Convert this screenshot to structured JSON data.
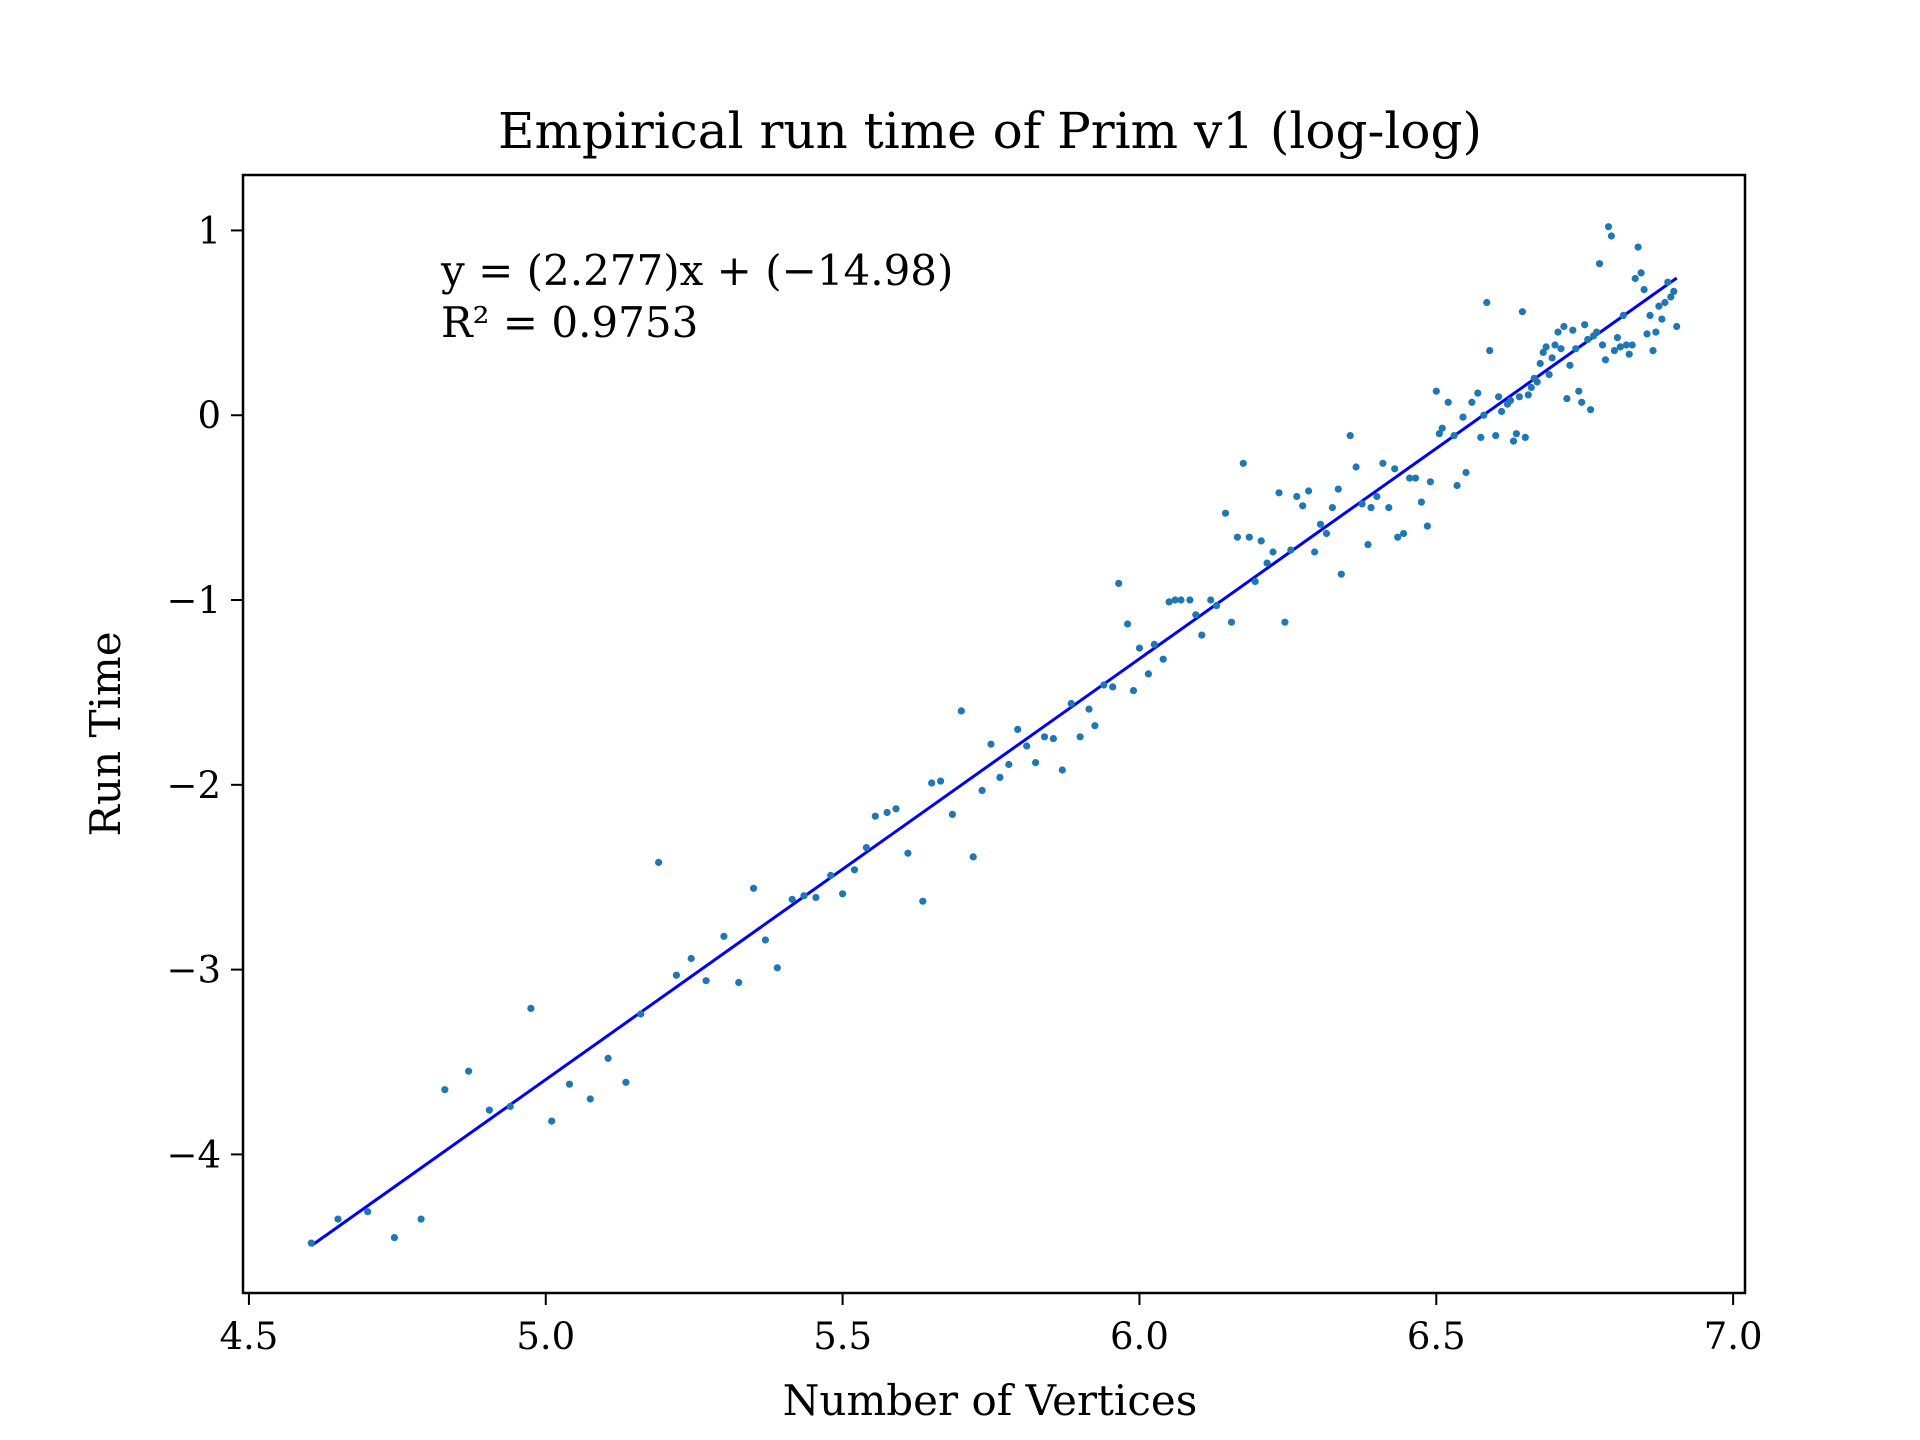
{
  "colors": {
    "points": "#1f77b4",
    "fit_line": "#0000ff",
    "axes": "#000000"
  },
  "chart_data": {
    "type": "scatter",
    "title": "Empirical run time of Prim v1 (log-log)",
    "xlabel": "Number of Vertices",
    "ylabel": "Run Time",
    "xlim": [
      4.49,
      7.02
    ],
    "ylim": [
      -4.75,
      1.3
    ],
    "x_ticks": [
      4.5,
      5.0,
      5.5,
      6.0,
      6.5,
      7.0
    ],
    "x_tick_labels": [
      "4.5",
      "5.0",
      "5.5",
      "6.0",
      "6.5",
      "7.0"
    ],
    "y_ticks": [
      1,
      0,
      -1,
      -2,
      -3,
      -4
    ],
    "y_tick_labels": [
      "1",
      "0",
      "−1",
      "−2",
      "−3",
      "−4"
    ],
    "grid": false,
    "legend": "none",
    "fit": {
      "slope": 2.277,
      "intercept": -14.98,
      "x_range": [
        4.605,
        6.905
      ],
      "equation_text": "y = (2.277)x + (−14.98)",
      "r2_text": "R² = 0.9753"
    },
    "points": [
      [
        4.605,
        -4.48
      ],
      [
        4.65,
        -4.35
      ],
      [
        4.7,
        -4.31
      ],
      [
        4.745,
        -4.45
      ],
      [
        4.79,
        -4.35
      ],
      [
        4.83,
        -3.65
      ],
      [
        4.87,
        -3.55
      ],
      [
        4.905,
        -3.76
      ],
      [
        4.94,
        -3.74
      ],
      [
        4.975,
        -3.21
      ],
      [
        5.01,
        -3.82
      ],
      [
        5.04,
        -3.62
      ],
      [
        5.075,
        -3.7
      ],
      [
        5.105,
        -3.48
      ],
      [
        5.135,
        -3.61
      ],
      [
        5.16,
        -3.24
      ],
      [
        5.19,
        -2.42
      ],
      [
        5.22,
        -3.03
      ],
      [
        5.245,
        -2.94
      ],
      [
        5.27,
        -3.06
      ],
      [
        5.3,
        -2.82
      ],
      [
        5.325,
        -3.07
      ],
      [
        5.35,
        -2.56
      ],
      [
        5.37,
        -2.84
      ],
      [
        5.39,
        -2.99
      ],
      [
        5.415,
        -2.62
      ],
      [
        5.435,
        -2.6
      ],
      [
        5.455,
        -2.61
      ],
      [
        5.48,
        -2.49
      ],
      [
        5.5,
        -2.59
      ],
      [
        5.52,
        -2.46
      ],
      [
        5.54,
        -2.34
      ],
      [
        5.555,
        -2.17
      ],
      [
        5.575,
        -2.15
      ],
      [
        5.59,
        -2.13
      ],
      [
        5.61,
        -2.37
      ],
      [
        5.635,
        -2.63
      ],
      [
        5.65,
        -1.99
      ],
      [
        5.665,
        -1.98
      ],
      [
        5.685,
        -2.16
      ],
      [
        5.7,
        -1.6
      ],
      [
        5.72,
        -2.39
      ],
      [
        5.735,
        -2.03
      ],
      [
        5.75,
        -1.78
      ],
      [
        5.765,
        -1.96
      ],
      [
        5.78,
        -1.89
      ],
      [
        5.795,
        -1.7
      ],
      [
        5.81,
        -1.79
      ],
      [
        5.825,
        -1.88
      ],
      [
        5.84,
        -1.74
      ],
      [
        5.855,
        -1.75
      ],
      [
        5.87,
        -1.92
      ],
      [
        5.885,
        -1.56
      ],
      [
        5.9,
        -1.74
      ],
      [
        5.915,
        -1.59
      ],
      [
        5.925,
        -1.68
      ],
      [
        5.94,
        -1.46
      ],
      [
        5.955,
        -1.47
      ],
      [
        5.965,
        -0.91
      ],
      [
        5.98,
        -1.13
      ],
      [
        5.99,
        -1.49
      ],
      [
        6.0,
        -1.26
      ],
      [
        6.015,
        -1.4
      ],
      [
        6.025,
        -1.24
      ],
      [
        6.04,
        -1.32
      ],
      [
        6.05,
        -1.01
      ],
      [
        6.06,
        -1.0
      ],
      [
        6.07,
        -1.0
      ],
      [
        6.085,
        -1.0
      ],
      [
        6.095,
        -1.08
      ],
      [
        6.105,
        -1.19
      ],
      [
        6.12,
        -1.0
      ],
      [
        6.13,
        -1.03
      ],
      [
        6.145,
        -0.53
      ],
      [
        6.155,
        -1.12
      ],
      [
        6.165,
        -0.66
      ],
      [
        6.175,
        -0.26
      ],
      [
        6.185,
        -0.66
      ],
      [
        6.195,
        -0.9
      ],
      [
        6.205,
        -0.68
      ],
      [
        6.215,
        -0.8
      ],
      [
        6.225,
        -0.74
      ],
      [
        6.235,
        -0.42
      ],
      [
        6.245,
        -1.12
      ],
      [
        6.255,
        -0.73
      ],
      [
        6.265,
        -0.44
      ],
      [
        6.275,
        -0.49
      ],
      [
        6.285,
        -0.41
      ],
      [
        6.295,
        -0.74
      ],
      [
        6.305,
        -0.59
      ],
      [
        6.315,
        -0.64
      ],
      [
        6.325,
        -0.5
      ],
      [
        6.335,
        -0.4
      ],
      [
        6.34,
        -0.86
      ],
      [
        6.355,
        -0.11
      ],
      [
        6.365,
        -0.28
      ],
      [
        6.375,
        -0.48
      ],
      [
        6.385,
        -0.7
      ],
      [
        6.39,
        -0.5
      ],
      [
        6.4,
        -0.44
      ],
      [
        6.41,
        -0.26
      ],
      [
        6.42,
        -0.5
      ],
      [
        6.43,
        -0.29
      ],
      [
        6.435,
        -0.66
      ],
      [
        6.445,
        -0.64
      ],
      [
        6.455,
        -0.34
      ],
      [
        6.465,
        -0.34
      ],
      [
        6.475,
        -0.47
      ],
      [
        6.485,
        -0.6
      ],
      [
        6.49,
        -0.36
      ],
      [
        6.5,
        0.13
      ],
      [
        6.505,
        -0.1
      ],
      [
        6.51,
        -0.07
      ],
      [
        6.52,
        0.07
      ],
      [
        6.53,
        -0.11
      ],
      [
        6.535,
        -0.38
      ],
      [
        6.545,
        -0.01
      ],
      [
        6.55,
        -0.31
      ],
      [
        6.56,
        0.07
      ],
      [
        6.57,
        0.12
      ],
      [
        6.575,
        -0.12
      ],
      [
        6.58,
        0.0
      ],
      [
        6.585,
        0.61
      ],
      [
        6.59,
        0.35
      ],
      [
        6.6,
        -0.11
      ],
      [
        6.605,
        0.1
      ],
      [
        6.61,
        0.02
      ],
      [
        6.62,
        0.06
      ],
      [
        6.625,
        0.08
      ],
      [
        6.63,
        -0.14
      ],
      [
        6.635,
        -0.1
      ],
      [
        6.64,
        0.1
      ],
      [
        6.645,
        0.56
      ],
      [
        6.65,
        -0.12
      ],
      [
        6.655,
        0.11
      ],
      [
        6.66,
        0.15
      ],
      [
        6.665,
        0.2
      ],
      [
        6.67,
        0.18
      ],
      [
        6.675,
        0.28
      ],
      [
        6.68,
        0.34
      ],
      [
        6.685,
        0.37
      ],
      [
        6.69,
        0.22
      ],
      [
        6.695,
        0.31
      ],
      [
        6.7,
        0.38
      ],
      [
        6.705,
        0.45
      ],
      [
        6.71,
        0.36
      ],
      [
        6.715,
        0.48
      ],
      [
        6.72,
        0.09
      ],
      [
        6.725,
        0.27
      ],
      [
        6.73,
        0.46
      ],
      [
        6.735,
        0.36
      ],
      [
        6.74,
        0.13
      ],
      [
        6.745,
        0.07
      ],
      [
        6.75,
        0.49
      ],
      [
        6.755,
        0.41
      ],
      [
        6.76,
        0.03
      ],
      [
        6.765,
        0.43
      ],
      [
        6.77,
        0.45
      ],
      [
        6.775,
        0.82
      ],
      [
        6.78,
        0.38
      ],
      [
        6.785,
        0.3
      ],
      [
        6.79,
        1.02
      ],
      [
        6.795,
        0.97
      ],
      [
        6.8,
        0.35
      ],
      [
        6.805,
        0.42
      ],
      [
        6.81,
        0.37
      ],
      [
        6.815,
        0.54
      ],
      [
        6.82,
        0.38
      ],
      [
        6.825,
        0.33
      ],
      [
        6.83,
        0.38
      ],
      [
        6.835,
        0.74
      ],
      [
        6.84,
        0.91
      ],
      [
        6.845,
        0.77
      ],
      [
        6.85,
        0.68
      ],
      [
        6.855,
        0.44
      ],
      [
        6.86,
        0.54
      ],
      [
        6.865,
        0.35
      ],
      [
        6.87,
        0.45
      ],
      [
        6.875,
        0.59
      ],
      [
        6.88,
        0.52
      ],
      [
        6.885,
        0.61
      ],
      [
        6.89,
        0.72
      ],
      [
        6.895,
        0.64
      ],
      [
        6.9,
        0.67
      ],
      [
        6.905,
        0.48
      ]
    ]
  }
}
